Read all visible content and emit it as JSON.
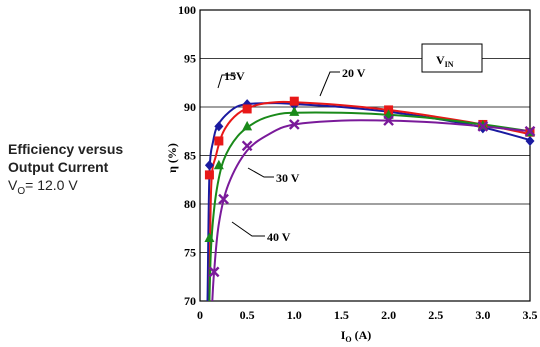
{
  "caption": {
    "line1": "Efficiency versus",
    "line2": "Output Current",
    "cond_symbol": "V",
    "cond_sub": "O",
    "cond_value": "= 12.0 V"
  },
  "chart_data": {
    "type": "line",
    "xlabel_main": "I",
    "xlabel_sub": "O",
    "xlabel_unit": " (A)",
    "ylabel_main": "η",
    "ylabel_unit": " (%)",
    "xlim": [
      0,
      3.5
    ],
    "ylim": [
      70,
      100
    ],
    "xticks": [
      0,
      0.5,
      1.0,
      1.5,
      2.0,
      2.5,
      3.0,
      3.5
    ],
    "xtick_labels": [
      "0",
      "0.5",
      "1.0",
      "1.5",
      "2.0",
      "2.5",
      "3.0",
      "3.5"
    ],
    "yticks": [
      70,
      75,
      80,
      85,
      90,
      95,
      100
    ],
    "ytick_labels": [
      "70",
      "75",
      "80",
      "85",
      "90",
      "95",
      "100"
    ],
    "grid": "horizontal",
    "legend_box_main": "V",
    "legend_box_sub": "IN",
    "series": [
      {
        "name": "15V",
        "color": "#1a1aa0",
        "marker": "diamond",
        "curve": [
          [
            0.08,
            70
          ],
          [
            0.1,
            83
          ],
          [
            0.14,
            86.5
          ],
          [
            0.2,
            88.3
          ],
          [
            0.35,
            89.8
          ],
          [
            0.5,
            90.3
          ],
          [
            0.8,
            90.4
          ],
          [
            1.0,
            90.3
          ],
          [
            1.5,
            90.0
          ],
          [
            2.0,
            89.5
          ],
          [
            2.5,
            88.8
          ],
          [
            3.0,
            87.9
          ],
          [
            3.5,
            86.6
          ]
        ],
        "points": [
          [
            0.1,
            84
          ],
          [
            0.2,
            88
          ],
          [
            0.5,
            90.3
          ],
          [
            1.0,
            90.2
          ],
          [
            2.0,
            89.4
          ],
          [
            3.0,
            87.8
          ],
          [
            3.5,
            86.5
          ]
        ]
      },
      {
        "name": "20 V",
        "color": "#e81818",
        "marker": "square",
        "curve": [
          [
            0.1,
            70
          ],
          [
            0.12,
            82
          ],
          [
            0.17,
            85
          ],
          [
            0.25,
            87.5
          ],
          [
            0.4,
            89.3
          ],
          [
            0.6,
            90.2
          ],
          [
            0.8,
            90.5
          ],
          [
            1.0,
            90.5
          ],
          [
            1.5,
            90.2
          ],
          [
            2.0,
            89.7
          ],
          [
            2.5,
            89.0
          ],
          [
            3.0,
            88.2
          ],
          [
            3.5,
            87.2
          ]
        ],
        "points": [
          [
            0.1,
            83
          ],
          [
            0.2,
            86.5
          ],
          [
            0.5,
            89.8
          ],
          [
            1.0,
            90.6
          ],
          [
            2.0,
            89.7
          ],
          [
            3.0,
            88.2
          ],
          [
            3.5,
            87.4
          ]
        ]
      },
      {
        "name": "30 V",
        "color": "#1a8a1a",
        "marker": "triangle",
        "curve": [
          [
            0.1,
            70
          ],
          [
            0.12,
            76
          ],
          [
            0.17,
            81
          ],
          [
            0.25,
            84.5
          ],
          [
            0.4,
            87
          ],
          [
            0.6,
            88.5
          ],
          [
            0.8,
            89.2
          ],
          [
            1.0,
            89.4
          ],
          [
            1.5,
            89.4
          ],
          [
            2.0,
            89.2
          ],
          [
            2.5,
            88.8
          ],
          [
            3.0,
            88.2
          ],
          [
            3.5,
            87.5
          ]
        ],
        "points": [
          [
            0.1,
            76.5
          ],
          [
            0.2,
            84
          ],
          [
            0.5,
            88
          ],
          [
            1.0,
            89.5
          ],
          [
            2.0,
            89.2
          ],
          [
            3.0,
            88.1
          ],
          [
            3.5,
            87.4
          ]
        ]
      },
      {
        "name": "40 V",
        "color": "#7a1a9a",
        "marker": "x",
        "curve": [
          [
            0.13,
            70
          ],
          [
            0.15,
            73
          ],
          [
            0.2,
            78
          ],
          [
            0.3,
            82
          ],
          [
            0.5,
            85.5
          ],
          [
            0.75,
            87.3
          ],
          [
            1.0,
            88.2
          ],
          [
            1.5,
            88.6
          ],
          [
            2.0,
            88.6
          ],
          [
            2.5,
            88.4
          ],
          [
            3.0,
            88.0
          ],
          [
            3.5,
            87.5
          ]
        ],
        "points": [
          [
            0.15,
            73
          ],
          [
            0.25,
            80.5
          ],
          [
            0.5,
            86
          ],
          [
            1.0,
            88.2
          ],
          [
            2.0,
            88.6
          ],
          [
            3.0,
            88.0
          ],
          [
            3.5,
            87.5
          ]
        ]
      }
    ]
  }
}
